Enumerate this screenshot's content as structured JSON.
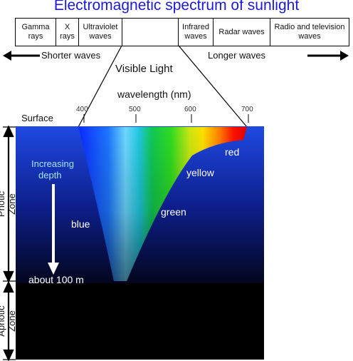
{
  "title": "Electromagnetic spectrum of sunlight",
  "bands": [
    {
      "label": "Gamma rays"
    },
    {
      "label": "X rays"
    },
    {
      "label": "Ultraviolet waves"
    },
    {
      "label": ""
    },
    {
      "label": "Infrared waves"
    },
    {
      "label": "Radar waves"
    },
    {
      "label": "Radio and television waves"
    }
  ],
  "shorter_label": "Shorter waves",
  "longer_label": "Longer waves",
  "visible_label": "Visible Light",
  "wavelength_label": "wavelength (nm)",
  "ticks": [
    "400",
    "500",
    "600",
    "700"
  ],
  "surface_label": "Surface",
  "depth_label_1": "Increasing",
  "depth_label_2": "depth",
  "colors": [
    "red",
    "yellow",
    "green",
    "blue"
  ],
  "depth_marker": "about 100 m",
  "photic_zone": "Photic Zone",
  "aphotic_zone": "Aphotic Zone"
}
